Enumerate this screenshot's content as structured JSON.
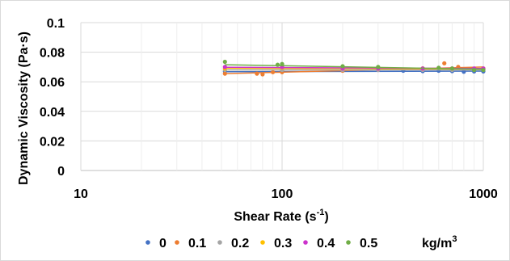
{
  "chart_data": {
    "type": "scatter",
    "title": "",
    "xlabel": "Shear Rate (s",
    "xlabel_sup": "-1",
    "xlabel_end": ")",
    "ylabel": "Dynamic Viscosity (Pa·s)",
    "xscale": "log",
    "xlim": [
      10,
      1000
    ],
    "ylim": [
      0,
      0.1
    ],
    "xticks": [
      10,
      100,
      1000
    ],
    "xtick_labels": [
      "10",
      "100",
      "1000"
    ],
    "yticks": [
      0,
      0.02,
      0.04,
      0.06,
      0.08,
      0.1
    ],
    "ytick_labels": [
      "0",
      "0.02",
      "0.04",
      "0.06",
      "0.08",
      "0.1"
    ],
    "grid": "major and minor vertical, major horizontal",
    "legend_position": "bottom",
    "legend_unit": "kg/m",
    "legend_unit_sup": "3",
    "trendlines": true,
    "series": [
      {
        "name": "0",
        "color": "#4472C4",
        "x": [
          52,
          100,
          200,
          300,
          400,
          500,
          600,
          700,
          800,
          900,
          1000
        ],
        "y": [
          0.067,
          0.0675,
          0.068,
          0.068,
          0.0675,
          0.0672,
          0.0675,
          0.0672,
          0.0668,
          0.067,
          0.067
        ],
        "trend": [
          0.0668,
          0.0672
        ]
      },
      {
        "name": "0.1",
        "color": "#ED7D31",
        "x": [
          52,
          75,
          80,
          90,
          100,
          200,
          300,
          500,
          640,
          750,
          1000
        ],
        "y": [
          0.0655,
          0.0655,
          0.065,
          0.0665,
          0.0665,
          0.0675,
          0.068,
          0.069,
          0.0725,
          0.07,
          0.0685
        ],
        "trend": [
          0.0655,
          0.07
        ]
      },
      {
        "name": "0.2",
        "color": "#A5A5A5",
        "x": [
          52,
          100,
          200,
          300,
          500,
          700,
          900,
          1000
        ],
        "y": [
          0.068,
          0.068,
          0.068,
          0.068,
          0.068,
          0.068,
          0.068,
          0.068
        ],
        "trend": [
          0.068,
          0.068
        ]
      },
      {
        "name": "0.3",
        "color": "#FFC000",
        "x": [
          52,
          100,
          200,
          300,
          500,
          700,
          900,
          1000
        ],
        "y": [
          0.069,
          0.0695,
          0.069,
          0.069,
          0.069,
          0.069,
          0.0685,
          0.069
        ],
        "trend": [
          0.0692,
          0.0686
        ]
      },
      {
        "name": "0.4",
        "color": "#CC33CC",
        "x": [
          52,
          100,
          200,
          300,
          500,
          700,
          900,
          1000
        ],
        "y": [
          0.07,
          0.07,
          0.069,
          0.069,
          0.069,
          0.069,
          0.069,
          0.069
        ],
        "trend": [
          0.0698,
          0.069
        ]
      },
      {
        "name": "0.5",
        "color": "#70AD47",
        "x": [
          52,
          95,
          100,
          200,
          300,
          600,
          700,
          900,
          1000
        ],
        "y": [
          0.0735,
          0.0715,
          0.072,
          0.0705,
          0.07,
          0.0695,
          0.069,
          0.068,
          0.068
        ],
        "trend": [
          0.0715,
          0.0685
        ]
      }
    ]
  }
}
